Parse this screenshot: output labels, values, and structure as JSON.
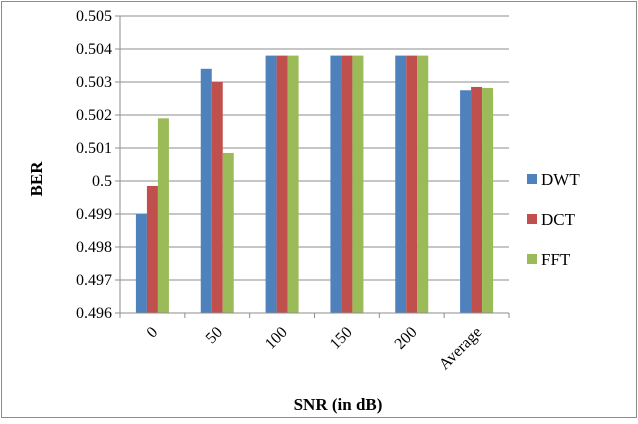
{
  "chart_data": {
    "type": "bar",
    "title": "",
    "xlabel": "SNR (in dB)",
    "ylabel": "BER",
    "categories": [
      "0",
      "50",
      "100",
      "150",
      "200",
      "Average"
    ],
    "series": [
      {
        "name": "DWT",
        "color": "#4f81bd",
        "values": [
          0.499,
          0.5034,
          0.5038,
          0.5038,
          0.5038,
          0.50275
        ]
      },
      {
        "name": "DCT",
        "color": "#c0504d",
        "values": [
          0.49985,
          0.503,
          0.5038,
          0.5038,
          0.5038,
          0.50285
        ]
      },
      {
        "name": "FFT",
        "color": "#9bbb59",
        "values": [
          0.5019,
          0.50085,
          0.5038,
          0.5038,
          0.5038,
          0.50282
        ]
      }
    ],
    "ylim": [
      0.496,
      0.505
    ],
    "yticks": [
      "0.496",
      "0.497",
      "0.498",
      "0.499",
      "0.5",
      "0.501",
      "0.502",
      "0.503",
      "0.504",
      "0.505"
    ],
    "grid": true,
    "legend_position": "right"
  }
}
